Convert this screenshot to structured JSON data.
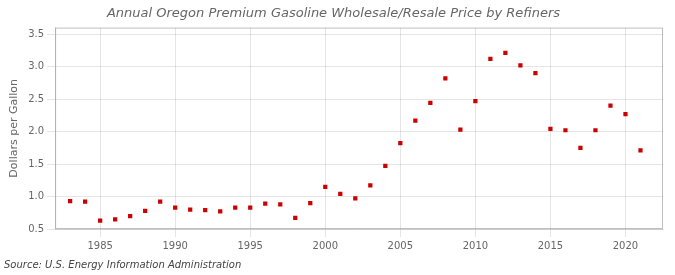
{
  "chart_data": {
    "type": "scatter",
    "title": "Annual Oregon Premium Gasoline Wholesale/Resale Price by Refiners",
    "ylabel": "Dollars per Gallon",
    "annotations": [
      "Source: U.S. Energy Information Administration"
    ],
    "x": [
      1983,
      1984,
      1985,
      1986,
      1987,
      1988,
      1989,
      1990,
      1991,
      1992,
      1993,
      1994,
      1995,
      1996,
      1997,
      1998,
      1999,
      2000,
      2001,
      2002,
      2003,
      2004,
      2005,
      2006,
      2007,
      2008,
      2009,
      2010,
      2011,
      2012,
      2013,
      2014,
      2015,
      2016,
      2017,
      2018,
      2019,
      2020,
      2021
    ],
    "values": [
      0.93,
      0.92,
      0.63,
      0.65,
      0.7,
      0.78,
      0.92,
      0.83,
      0.8,
      0.79,
      0.77,
      0.83,
      0.83,
      0.89,
      0.88,
      0.67,
      0.9,
      1.15,
      1.04,
      0.97,
      1.17,
      1.47,
      1.82,
      2.17,
      2.44,
      2.82,
      2.03,
      2.47,
      3.12,
      3.21,
      3.02,
      2.9,
      2.04,
      2.02,
      1.75,
      2.02,
      2.4,
      2.27,
      1.71
    ],
    "color": "#cc0000",
    "marker": "square",
    "xlim": [
      1982.0,
      2022.5
    ],
    "ylim": [
      0.5,
      3.6
    ],
    "xticks": [
      1985,
      1990,
      1995,
      2000,
      2005,
      2010,
      2015,
      2020
    ],
    "yticks": [
      0.5,
      {
        "value": 1.0,
        "label": "1.0"
      },
      1.5,
      {
        "value": 2.0,
        "label": "2.0"
      },
      2.5,
      {
        "value": 3.0,
        "label": "3.0"
      },
      3.5
    ],
    "grid": true
  }
}
